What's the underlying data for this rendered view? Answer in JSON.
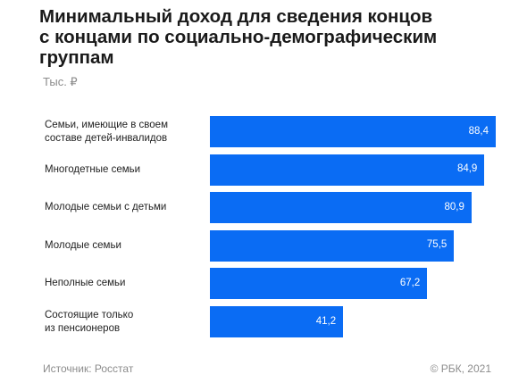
{
  "title_lines": [
    "Минимальный доход для сведения концов",
    "с концами по социально-демографическим",
    "группам"
  ],
  "unit": "Тыс. ₽",
  "source": "Источник: Росстат",
  "copyright": "© РБК, 2021",
  "colors": {
    "bar": "#0a6cf4",
    "text": "#1a1a1a",
    "muted": "#8c8c8c"
  },
  "chart_data": {
    "type": "bar",
    "orientation": "horizontal",
    "categories": [
      [
        "Семьи, имеющие в своем",
        "составе детей-инвалидов"
      ],
      [
        "Многодетные семьи"
      ],
      [
        "Молодые семьи с детьми"
      ],
      [
        "Молодые семьи"
      ],
      [
        "Неполные семьи"
      ],
      [
        "Состоящие только",
        "из пенсионеров"
      ]
    ],
    "values": [
      88.4,
      84.9,
      80.9,
      75.5,
      67.2,
      41.2
    ],
    "value_labels": [
      "88,4",
      "84,9",
      "80,9",
      "75,5",
      "67,2",
      "41,2"
    ],
    "xlim": [
      0,
      88.4
    ],
    "grid": false,
    "legend": "none"
  }
}
